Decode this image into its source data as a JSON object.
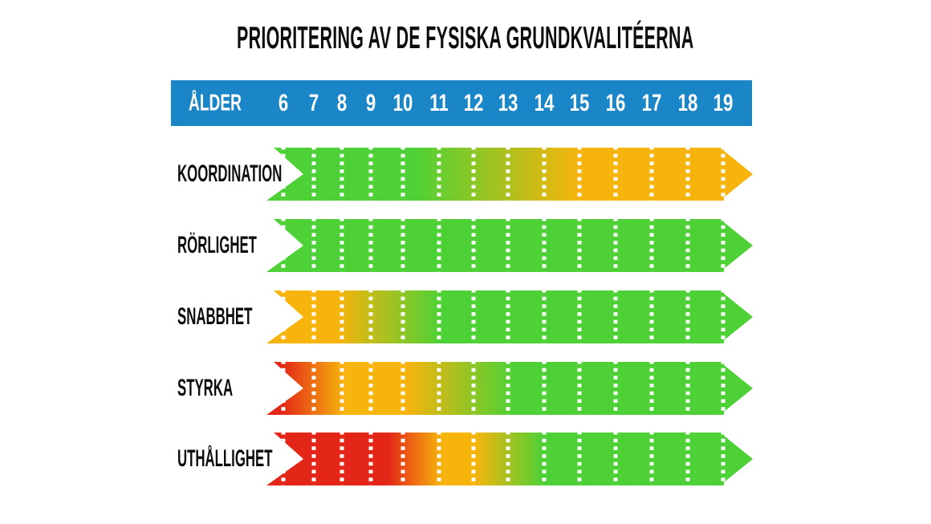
{
  "title": "PRIORITERING AV DE FYSISKA GRUNDKVALITÉERNA",
  "header": {
    "age_label": "ÅLDER",
    "ages": [
      "6",
      "7",
      "8",
      "9",
      "10",
      "11",
      "12",
      "13",
      "14",
      "15",
      "16",
      "17",
      "18",
      "19"
    ]
  },
  "colors": {
    "background": "#ffffff",
    "header_bg": "#1a86c8",
    "header_text": "#ffffff",
    "title_text": "#0d0d0d",
    "label_text": "#0d0d0d",
    "dash": "#ffffff",
    "green": "#4dd136",
    "amber": "#f6b40d",
    "red": "#e32617"
  },
  "chart_data": {
    "type": "heatmap",
    "title": "PRIORITERING AV DE FYSISKA GRUNDKVALITÉERNA",
    "xlabel": "ÅLDER",
    "x": [
      6,
      7,
      8,
      9,
      10,
      11,
      12,
      13,
      14,
      15,
      16,
      17,
      18,
      19
    ],
    "legend": "color encodes training priority: green=high, amber=medium, red=low",
    "rows": [
      {
        "label": "KOORDINATION",
        "levels_by_age": [
          "high",
          "high",
          "high",
          "high",
          "high",
          "medium-high",
          "medium-high",
          "medium",
          "medium",
          "medium",
          "medium",
          "medium",
          "medium",
          "medium"
        ],
        "gradient": [
          [
            0,
            "green"
          ],
          [
            0.3,
            "green"
          ],
          [
            0.64,
            "amber"
          ],
          [
            1,
            "amber"
          ]
        ]
      },
      {
        "label": "RÖRLIGHET",
        "levels_by_age": [
          "high",
          "high",
          "high",
          "high",
          "high",
          "high",
          "high",
          "high",
          "high",
          "high",
          "high",
          "high",
          "high",
          "high"
        ],
        "gradient": [
          [
            0,
            "green"
          ],
          [
            1,
            "green"
          ]
        ]
      },
      {
        "label": "SNABBHET",
        "levels_by_age": [
          "medium",
          "medium",
          "medium",
          "medium-high",
          "medium-high",
          "high",
          "high",
          "high",
          "high",
          "high",
          "high",
          "high",
          "high",
          "high"
        ],
        "gradient": [
          [
            0,
            "amber"
          ],
          [
            0.15,
            "amber"
          ],
          [
            0.36,
            "green"
          ],
          [
            1,
            "green"
          ]
        ]
      },
      {
        "label": "STYRKA",
        "levels_by_age": [
          "low",
          "low-medium",
          "medium",
          "medium",
          "medium",
          "medium-high",
          "medium-high",
          "high",
          "high",
          "high",
          "high",
          "high",
          "high",
          "high"
        ],
        "gradient": [
          [
            0,
            "red"
          ],
          [
            0.03,
            "red"
          ],
          [
            0.16,
            "amber"
          ],
          [
            0.29,
            "amber"
          ],
          [
            0.51,
            "green"
          ],
          [
            1,
            "green"
          ]
        ]
      },
      {
        "label": "UTHÅLLIGHET",
        "levels_by_age": [
          "low",
          "low",
          "low",
          "low",
          "low-medium",
          "medium",
          "medium",
          "medium-high",
          "high",
          "high",
          "high",
          "high",
          "high",
          "high"
        ],
        "gradient": [
          [
            0,
            "red"
          ],
          [
            0.25,
            "red"
          ],
          [
            0.36,
            "amber"
          ],
          [
            0.43,
            "amber"
          ],
          [
            0.57,
            "green"
          ],
          [
            1,
            "green"
          ]
        ]
      }
    ]
  }
}
